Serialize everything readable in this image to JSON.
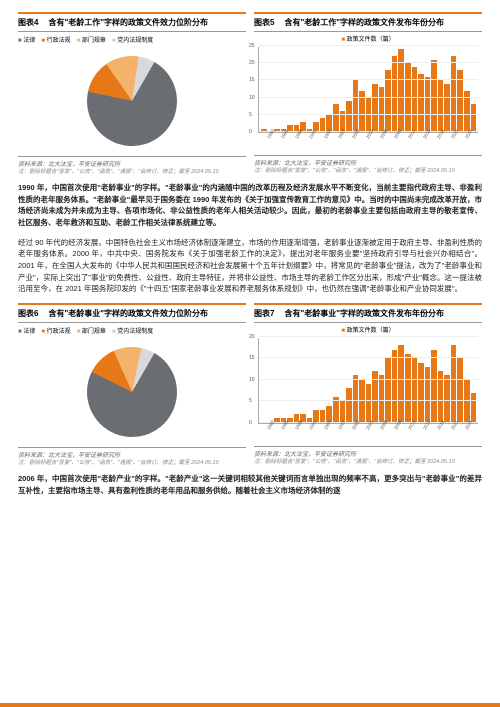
{
  "charts": {
    "c4": {
      "num": "图表4",
      "title": "含有\"老龄工作\"字样的政策文件效力位阶分布",
      "legend": [
        "法律",
        "行政法规",
        "部门规章",
        "党内法规制度"
      ],
      "slices": [
        70,
        12,
        12,
        6
      ],
      "colors": [
        "#6a6d72",
        "#e67817",
        "#f4b26a",
        "#d9d9d9"
      ],
      "src": "资料来源：北大法宝，平安证券研究所",
      "note": "注：剔除标题含\"答复\"、\"公告\"、\"函告\"、\"通报\"、\"会修订、修正；截至 2024.05.10"
    },
    "c5": {
      "num": "图表5",
      "title": "含有\"老龄工作\"字样的政策文件发布年份分布",
      "legend_label": "政策文件数（篇）",
      "ymax": 25,
      "yticks": [
        0,
        5,
        10,
        15,
        20,
        25
      ],
      "years": [
        1982,
        1985,
        1988,
        1991,
        1994,
        1997,
        2000,
        2003,
        2006,
        2009,
        2012,
        2015,
        2018,
        2021,
        2024
      ],
      "values": [
        1,
        0,
        1,
        1,
        2,
        2,
        3,
        1,
        3,
        4,
        5,
        8,
        6,
        9,
        15,
        12,
        10,
        14,
        13,
        18,
        22,
        24,
        20,
        19,
        17,
        16,
        21,
        15,
        14,
        22,
        18,
        12,
        8
      ],
      "color": "#e67817",
      "src": "资料来源：北大法宝，平安证券研究所",
      "note": "注：剔除标题含\"答复\"、\"公告\"、\"函告\"、\"通报\"、\"会修订、修正；截至 2024.05.10"
    },
    "c6": {
      "num": "图表6",
      "title": "含有\"老龄事业\"字样的政策文件效力位阶分布",
      "legend": [
        "法律",
        "行政法规",
        "部门规章",
        "党内法规制度"
      ],
      "slices": [
        74,
        11,
        10,
        5
      ],
      "colors": [
        "#6a6d72",
        "#e67817",
        "#f4b26a",
        "#d9d9d9"
      ],
      "src": "资料来源：北大法宝，平安证券研究所",
      "note": "注：剔除标题含\"答复\"、\"公告\"、\"函告\"、\"通报\"、\"会修订、修正；截至 2024.05.10"
    },
    "c7": {
      "num": "图表7",
      "title": "含有\"老龄事业\"字样的政策文件发布年份分布",
      "legend_label": "政策文件数（篇）",
      "ymax": 20,
      "yticks": [
        0,
        5,
        10,
        15,
        20
      ],
      "years": [
        1982,
        1985,
        1988,
        1991,
        1994,
        1997,
        2000,
        2003,
        2006,
        2009,
        2012,
        2015,
        2018,
        2021,
        2024
      ],
      "values": [
        0,
        0,
        1,
        1,
        1,
        2,
        2,
        1,
        3,
        3,
        4,
        6,
        5,
        8,
        11,
        10,
        9,
        12,
        11,
        15,
        17,
        18,
        16,
        15,
        14,
        13,
        17,
        12,
        11,
        18,
        15,
        10,
        7
      ],
      "color": "#e67817",
      "src": "资料来源：北大法宝，平安证券研究所",
      "note": "注：剔除标题含\"答复\"、\"公告\"、\"函告\"、\"通报\"、\"会修订、修正；截至 2024.05.10"
    }
  },
  "para1": "1990 年，中国首次使用\"老龄事业\"的字样。\"老龄事业\"的内涵随中国的改革历程及经济发展水平不断变化，当前主要指代政府主导、非盈利性质的老年服务体系。\"老龄事业\"最早见于国务委在 1990 年发布的《关于加强宣传教育工作的意见》中。当时的中国尚未完成改革开放，市场经济尚未成为并未成为主导、各项市场化、非公益性质的老年人相关活动较少。因此，最初的老龄事业主要包括由政府主导的敬老宣传、社区服务、老年救济和互助、老龄工作相关法律系统建立等。",
  "para2": "经过 90 年代的经济发展，中国特色社会主义市场经济体制逐渐建立，市场的作用逐渐增强，老龄事业逐渐被定用于政府主导、非盈利性质的老年服务体系。2000 年，中共中央、国务院发布《关于加强老龄工作的决定》，提出对老年服务业要\"坚持政府引导与社会兴办相结合\"。2001 年，在全国人大发布的《中华人民共和国国民经济和社会发展第十个五年计划纲要》中，将常见的\"老龄事业\"提法，改为了\"老龄事业和产业\"，实际上突出了\"事业\"的免费性、公益性、政府主导特征，并将非公益性、市场主导的老龄工作区分出来，形成\"产业\"概念。这一提法被沿用至今，在 2021 年国务院印发的《\"十四五\"国家老龄事业发展和养老服务体系规划》中，也仍然在强调\"老龄事业和产业协同发展\"。",
  "para3": "2006 年，中国首次使用\"老龄产业\"的字样。\"老龄产业\"这一关键词相较其他关键词而言单独出现的频率不高，更多突出与\"老龄事业\"的差异互补性，主要指市场主导、具有盈利性质的老年用品和服务供给。随着社会主义市场经济体制的逐"
}
